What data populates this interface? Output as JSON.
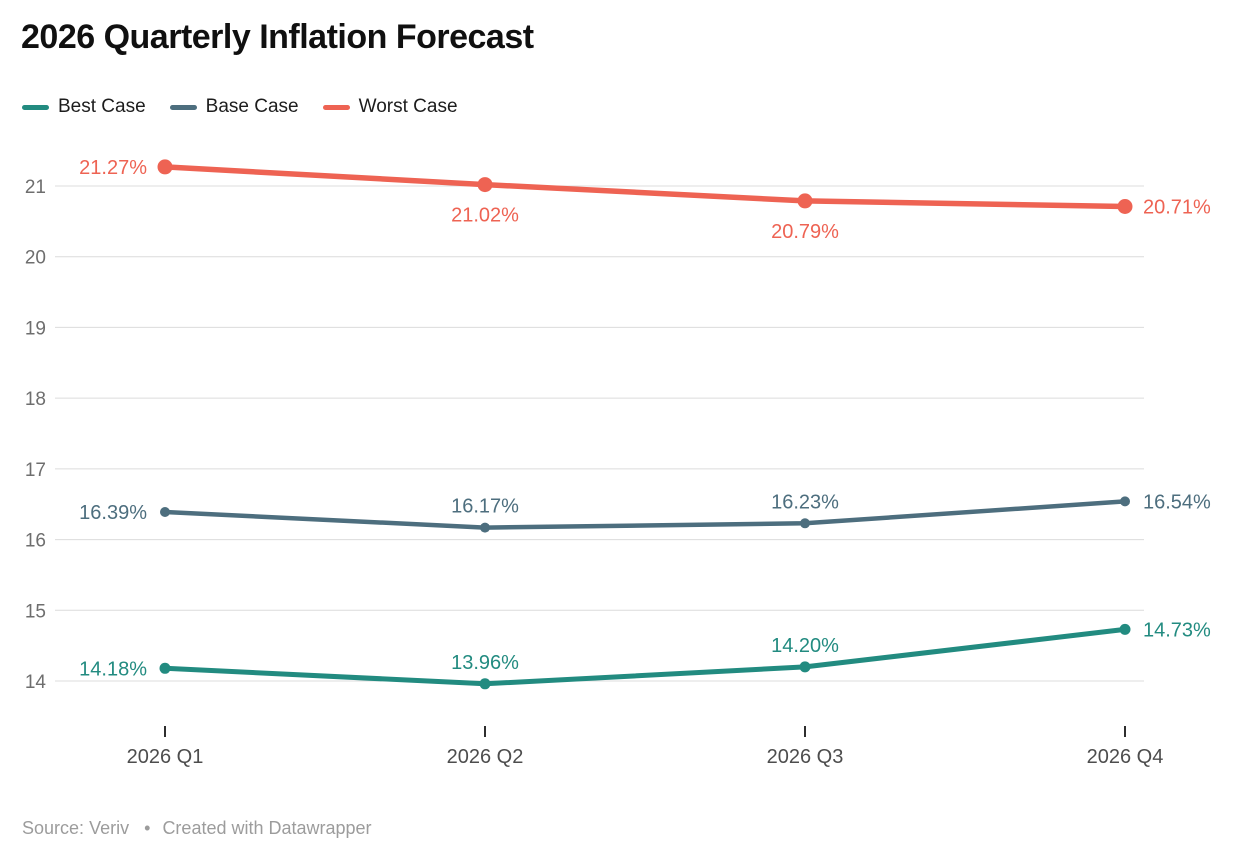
{
  "header": {
    "title": "2026 Quarterly Inflation Forecast"
  },
  "chart_data": {
    "type": "line",
    "title": "2026 Quarterly Inflation Forecast",
    "categories": [
      "2026 Q1",
      "2026 Q2",
      "2026 Q3",
      "2026 Q4"
    ],
    "series": [
      {
        "name": "Best Case",
        "color": "#228b80",
        "values": [
          14.18,
          13.96,
          14.2,
          14.73
        ],
        "point_labels": [
          "14.18%",
          "13.96%",
          "14.20%",
          "14.73%"
        ],
        "label_positions": [
          "left",
          "above",
          "above",
          "right"
        ],
        "line_width": 5,
        "dot_radius": 5.5
      },
      {
        "name": "Base Case",
        "color": "#4d6e7e",
        "values": [
          16.39,
          16.17,
          16.23,
          16.54
        ],
        "point_labels": [
          "16.39%",
          "16.17%",
          "16.23%",
          "16.54%"
        ],
        "label_positions": [
          "left",
          "above",
          "above",
          "right"
        ],
        "line_width": 4.5,
        "dot_radius": 5
      },
      {
        "name": "Worst Case",
        "color": "#ee6353",
        "values": [
          21.27,
          21.02,
          20.79,
          20.71
        ],
        "point_labels": [
          "21.27%",
          "21.02%",
          "20.79%",
          "20.71%"
        ],
        "label_positions": [
          "left",
          "below",
          "below",
          "right"
        ],
        "line_width": 5.5,
        "dot_radius": 7.5
      }
    ],
    "xlabel": "",
    "ylabel": "",
    "yticks": [
      14,
      15,
      16,
      17,
      18,
      19,
      20,
      21
    ],
    "ylim": [
      13.7,
      21.55
    ],
    "grid": "horizontal",
    "legend_position": "top-left",
    "value_suffix": "%"
  },
  "footer": {
    "source_label": "Source:",
    "source_value": "Veriv",
    "separator": "•",
    "attribution": "Created with Datawrapper"
  }
}
